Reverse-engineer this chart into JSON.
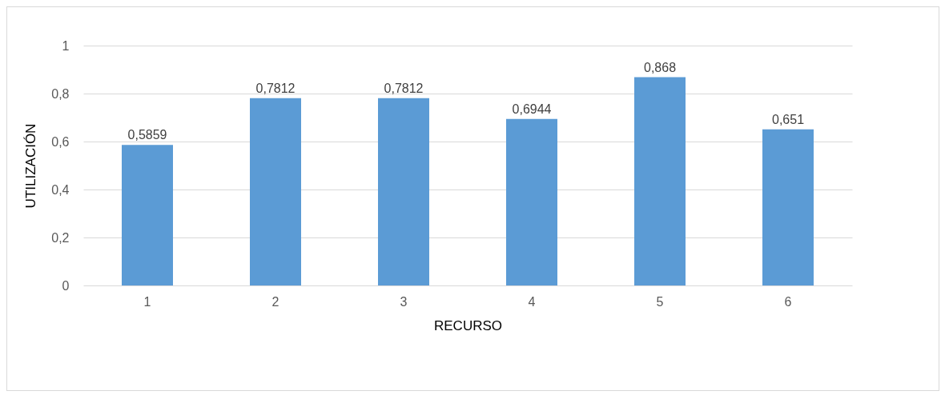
{
  "chart_data": {
    "type": "bar",
    "xlabel": "RECURSO",
    "ylabel": "UTILIZACIÓN",
    "categories": [
      "1",
      "2",
      "3",
      "4",
      "5",
      "6"
    ],
    "values": [
      0.5859,
      0.7812,
      0.7812,
      0.6944,
      0.868,
      0.651
    ],
    "value_labels": [
      "0,5859",
      "0,7812",
      "0,7812",
      "0,6944",
      "0,868",
      "0,651"
    ],
    "color": "#5b9bd5",
    "ylim": [
      0,
      1
    ],
    "yticks": [
      0,
      {
        "value": 0.2,
        "label": "0,2"
      },
      {
        "value": 0.4,
        "label": "0,4"
      },
      {
        "value": 0.6,
        "label": "0,6"
      },
      {
        "value": 0.8,
        "label": "0,8"
      },
      1
    ],
    "grid": "y"
  }
}
